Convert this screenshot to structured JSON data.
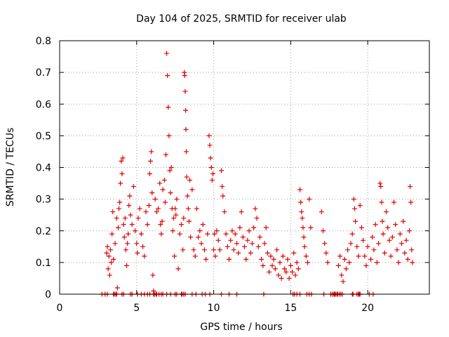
{
  "chart_data": {
    "type": "scatter",
    "title": "Day 104 of 2025, SRMTID for receiver ulab",
    "xlabel": "GPS time / hours",
    "ylabel": "SRMTID / TECUs",
    "xlim": [
      0,
      24
    ],
    "ylim": [
      0,
      0.8
    ],
    "x_ticks": [
      "0",
      "5",
      "10",
      "15",
      "20"
    ],
    "x_tick_values": [
      0,
      5,
      10,
      15,
      20
    ],
    "y_ticks": [
      "0",
      "0.1",
      "0.2",
      "0.3",
      "0.4",
      "0.5",
      "0.6",
      "0.7",
      "0.8"
    ],
    "y_tick_values": [
      0,
      0.1,
      0.2,
      0.3,
      0.4,
      0.5,
      0.6,
      0.7,
      0.8
    ],
    "grid": true,
    "marker": "+",
    "color": "#e00000",
    "series": [
      {
        "name": "SRMTID",
        "points": [
          [
            3.05,
            0.13
          ],
          [
            3.1,
            0.15
          ],
          [
            3.15,
            0.08
          ],
          [
            3.2,
            0.12
          ],
          [
            3.25,
            0.06
          ],
          [
            3.3,
            0.14
          ],
          [
            3.35,
            0.1
          ],
          [
            3.4,
            0.19
          ],
          [
            3.45,
            0.26
          ],
          [
            3.5,
            0.11
          ],
          [
            3.6,
            0.16
          ],
          [
            3.7,
            0.24
          ],
          [
            3.75,
            0.02
          ],
          [
            3.8,
            0.21
          ],
          [
            3.85,
            0.27
          ],
          [
            3.9,
            0.29
          ],
          [
            3.95,
            0.35
          ],
          [
            4.0,
            0.42
          ],
          [
            4.05,
            0.38
          ],
          [
            4.1,
            0.43
          ],
          [
            4.15,
            0.22
          ],
          [
            4.2,
            0.18
          ],
          [
            4.25,
            0.24
          ],
          [
            4.3,
            0.14
          ],
          [
            4.35,
            0.09
          ],
          [
            4.4,
            0.16
          ],
          [
            4.45,
            0.19
          ],
          [
            4.5,
            0.28
          ],
          [
            4.55,
            0.31
          ],
          [
            4.6,
            0.25
          ],
          [
            4.7,
            0.22
          ],
          [
            4.8,
            0.34
          ],
          [
            4.9,
            0.2
          ],
          [
            5.0,
            0.16
          ],
          [
            5.05,
            0.13
          ],
          [
            5.1,
            0.24
          ],
          [
            5.2,
            0.27
          ],
          [
            5.3,
            0.19
          ],
          [
            5.4,
            0.15
          ],
          [
            5.5,
            0.12
          ],
          [
            5.6,
            0.26
          ],
          [
            5.7,
            0.22
          ],
          [
            5.8,
            0.28
          ],
          [
            5.85,
            0.38
          ],
          [
            5.9,
            0.42
          ],
          [
            5.95,
            0.45
          ],
          [
            6.0,
            0.32
          ],
          [
            6.05,
            0.06
          ],
          [
            6.1,
            0.01
          ],
          [
            6.2,
            0.3
          ],
          [
            6.3,
            0.26
          ],
          [
            6.4,
            0.27
          ],
          [
            6.5,
            0.35
          ],
          [
            6.55,
            0.22
          ],
          [
            6.6,
            0.19
          ],
          [
            6.65,
            0.23
          ],
          [
            6.7,
            0.33
          ],
          [
            6.8,
            0.36
          ],
          [
            6.85,
            0.29
          ],
          [
            6.9,
            0.44
          ],
          [
            6.95,
            0.76
          ],
          [
            7.0,
            0.69
          ],
          [
            7.05,
            0.59
          ],
          [
            7.1,
            0.5
          ],
          [
            7.15,
            0.39
          ],
          [
            7.2,
            0.32
          ],
          [
            7.25,
            0.4
          ],
          [
            7.3,
            0.27
          ],
          [
            7.35,
            0.2
          ],
          [
            7.4,
            0.24
          ],
          [
            7.45,
            0.12
          ],
          [
            7.5,
            0.27
          ],
          [
            7.55,
            0.25
          ],
          [
            7.6,
            0.3
          ],
          [
            7.7,
            0.08
          ],
          [
            7.8,
            0.19
          ],
          [
            7.9,
            0.22
          ],
          [
            8.0,
            0.14
          ],
          [
            8.05,
            0.24
          ],
          [
            8.1,
            0.7
          ],
          [
            8.12,
            0.69
          ],
          [
            8.15,
            0.64
          ],
          [
            8.18,
            0.58
          ],
          [
            8.2,
            0.52
          ],
          [
            8.22,
            0.45
          ],
          [
            8.25,
            0.37
          ],
          [
            8.3,
            0.31
          ],
          [
            8.35,
            0.27
          ],
          [
            8.4,
            0.23
          ],
          [
            8.45,
            0.36
          ],
          [
            8.5,
            0.18
          ],
          [
            8.6,
            0.33
          ],
          [
            8.7,
            0.14
          ],
          [
            8.8,
            0.12
          ],
          [
            8.9,
            0.27
          ],
          [
            9.0,
            0.18
          ],
          [
            9.1,
            0.2
          ],
          [
            9.2,
            0.16
          ],
          [
            9.3,
            0.22
          ],
          [
            9.4,
            0.14
          ],
          [
            9.5,
            0.11
          ],
          [
            9.6,
            0.19
          ],
          [
            9.7,
            0.5
          ],
          [
            9.75,
            0.47
          ],
          [
            9.8,
            0.43
          ],
          [
            9.85,
            0.4
          ],
          [
            9.9,
            0.36
          ],
          [
            9.95,
            0.38
          ],
          [
            10.0,
            0.14
          ],
          [
            10.05,
            0.19
          ],
          [
            10.1,
            0.12
          ],
          [
            10.2,
            0.2
          ],
          [
            10.3,
            0.17
          ],
          [
            10.4,
            0.14
          ],
          [
            10.5,
            0.39
          ],
          [
            10.55,
            0.34
          ],
          [
            10.6,
            0.31
          ],
          [
            10.7,
            0.26
          ],
          [
            10.8,
            0.19
          ],
          [
            10.9,
            0.15
          ],
          [
            11.0,
            0.11
          ],
          [
            11.1,
            0.17
          ],
          [
            11.2,
            0.2
          ],
          [
            11.3,
            0.14
          ],
          [
            11.4,
            0.19
          ],
          [
            11.5,
            0.16
          ],
          [
            11.6,
            0.13
          ],
          [
            11.7,
            0.21
          ],
          [
            11.8,
            0.26
          ],
          [
            11.9,
            0.18
          ],
          [
            12.0,
            0.15
          ],
          [
            12.1,
            0.11
          ],
          [
            12.2,
            0.17
          ],
          [
            12.3,
            0.2
          ],
          [
            12.4,
            0.13
          ],
          [
            12.5,
            0.16
          ],
          [
            12.6,
            0.21
          ],
          [
            12.7,
            0.27
          ],
          [
            12.8,
            0.24
          ],
          [
            12.9,
            0.15
          ],
          [
            13.0,
            0.18
          ],
          [
            13.1,
            0.11
          ],
          [
            13.2,
            0.09
          ],
          [
            13.3,
            0.16
          ],
          [
            13.4,
            0.21
          ],
          [
            13.5,
            0.13
          ],
          [
            13.6,
            0.07
          ],
          [
            13.7,
            0.12
          ],
          [
            13.8,
            0.09
          ],
          [
            13.9,
            0.11
          ],
          [
            14.0,
            0.08
          ],
          [
            14.1,
            0.14
          ],
          [
            14.2,
            0.06
          ],
          [
            14.3,
            0.1
          ],
          [
            14.4,
            0.05
          ],
          [
            14.5,
            0.12
          ],
          [
            14.6,
            0.08
          ],
          [
            14.7,
            0.07
          ],
          [
            14.8,
            0.11
          ],
          [
            14.9,
            0.05
          ],
          [
            15.0,
            0.09
          ],
          [
            15.1,
            0.07
          ],
          [
            15.2,
            0.13
          ],
          [
            15.3,
            0.06
          ],
          [
            15.4,
            0.1
          ],
          [
            15.5,
            0.08
          ],
          [
            15.6,
            0.33
          ],
          [
            15.65,
            0.29
          ],
          [
            15.7,
            0.26
          ],
          [
            15.75,
            0.24
          ],
          [
            15.8,
            0.21
          ],
          [
            15.85,
            0.18
          ],
          [
            15.9,
            0.15
          ],
          [
            16.0,
            0.12
          ],
          [
            16.1,
            0.1
          ],
          [
            16.2,
            0.3
          ],
          [
            16.3,
            0.21
          ],
          [
            17.0,
            0.26
          ],
          [
            17.1,
            0.2
          ],
          [
            17.2,
            0.16
          ],
          [
            17.3,
            0.13
          ],
          [
            17.4,
            0.1
          ],
          [
            18.1,
            0.09
          ],
          [
            18.2,
            0.12
          ],
          [
            18.3,
            0.06
          ],
          [
            18.4,
            0.04
          ],
          [
            18.5,
            0.11
          ],
          [
            18.6,
            0.08
          ],
          [
            18.7,
            0.14
          ],
          [
            18.8,
            0.1
          ],
          [
            18.9,
            0.16
          ],
          [
            19.0,
            0.19
          ],
          [
            19.1,
            0.3
          ],
          [
            19.15,
            0.27
          ],
          [
            19.2,
            0.23
          ],
          [
            19.3,
            0.15
          ],
          [
            19.4,
            0.12
          ],
          [
            19.5,
            0.28
          ],
          [
            19.6,
            0.21
          ],
          [
            19.7,
            0.17
          ],
          [
            19.8,
            0.12
          ],
          [
            19.9,
            0.09
          ],
          [
            20.0,
            0.15
          ],
          [
            20.2,
            0.11
          ],
          [
            20.3,
            0.18
          ],
          [
            20.4,
            0.14
          ],
          [
            20.5,
            0.22
          ],
          [
            20.6,
            0.1
          ],
          [
            20.7,
            0.16
          ],
          [
            20.8,
            0.35
          ],
          [
            20.85,
            0.34
          ],
          [
            20.9,
            0.29
          ],
          [
            20.95,
            0.23
          ],
          [
            21.0,
            0.19
          ],
          [
            21.1,
            0.13
          ],
          [
            21.2,
            0.26
          ],
          [
            21.3,
            0.21
          ],
          [
            21.4,
            0.17
          ],
          [
            21.5,
            0.12
          ],
          [
            21.6,
            0.18
          ],
          [
            21.7,
            0.29
          ],
          [
            21.8,
            0.22
          ],
          [
            21.9,
            0.14
          ],
          [
            22.0,
            0.1
          ],
          [
            22.1,
            0.19
          ],
          [
            22.2,
            0.16
          ],
          [
            22.3,
            0.23
          ],
          [
            22.4,
            0.13
          ],
          [
            22.5,
            0.17
          ],
          [
            22.6,
            0.11
          ],
          [
            22.7,
            0.2
          ],
          [
            22.75,
            0.34
          ],
          [
            22.8,
            0.29
          ],
          [
            22.85,
            0.14
          ],
          [
            22.9,
            0.1
          ]
        ],
        "zero_points": [
          2.75,
          2.95,
          3.1,
          3.5,
          3.55,
          3.65,
          3.7,
          4.05,
          4.15,
          4.6,
          4.7,
          5.05,
          5.3,
          5.5,
          5.7,
          5.85,
          6.1,
          6.15,
          6.25,
          6.3,
          6.45,
          6.6,
          6.7,
          6.95,
          7.2,
          7.5,
          7.6,
          7.9,
          7.95,
          8.05,
          8.15,
          8.6,
          8.85,
          9.25,
          9.45,
          9.75,
          10.5,
          11.0,
          11.5,
          13.25,
          15.15,
          15.25,
          15.4,
          15.6,
          16.05,
          16.2,
          16.35,
          17.15,
          17.6,
          17.7,
          17.8,
          17.85,
          17.9,
          18.0,
          18.05,
          18.15,
          18.25,
          18.35,
          19.0,
          19.05,
          19.3,
          19.4,
          19.45,
          19.5,
          20.1,
          20.35
        ]
      }
    ]
  }
}
